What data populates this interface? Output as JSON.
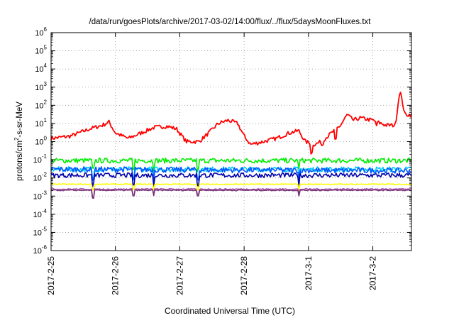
{
  "chart_data": {
    "type": "line",
    "title": "/data/run/goesPlots/archive/2017-03-02/14:00/flux/../flux/5daysMoonFluxes.txt",
    "xlabel": "Coordinated Universal Time (UTC)",
    "ylabel_main": "protons/cm",
    "ylabel_sup": "2",
    "ylabel_rest": "-s-sr-MeV",
    "yscale": "log",
    "ylim": [
      1e-06,
      1000000.0
    ],
    "y_ticks": [
      {
        "base": "10",
        "exp": "-6"
      },
      {
        "base": "10",
        "exp": "-5"
      },
      {
        "base": "10",
        "exp": "-4"
      },
      {
        "base": "10",
        "exp": "-3"
      },
      {
        "base": "10",
        "exp": "-2"
      },
      {
        "base": "10",
        "exp": "-1"
      },
      {
        "base": "10",
        "exp": "0"
      },
      {
        "base": "10",
        "exp": "1"
      },
      {
        "base": "10",
        "exp": "2"
      },
      {
        "base": "10",
        "exp": "3"
      },
      {
        "base": "10",
        "exp": "4"
      },
      {
        "base": "10",
        "exp": "5"
      },
      {
        "base": "10",
        "exp": "6"
      }
    ],
    "x_ticks": [
      "2017-2-25",
      "2017-2-26",
      "2017-2-27",
      "2017-2-28",
      "2017-3-1",
      "2017-3-2"
    ],
    "xlim_days": [
      0,
      5.6
    ],
    "grid": true,
    "legend": "none",
    "series": [
      {
        "color": "#ff0000",
        "base": [
          [
            0,
            1.5
          ],
          [
            0.3,
            2
          ],
          [
            0.6,
            5
          ],
          [
            0.8,
            8
          ],
          [
            0.9,
            12
          ],
          [
            1.0,
            3
          ],
          [
            1.2,
            1.5
          ],
          [
            1.4,
            3
          ],
          [
            1.6,
            6
          ],
          [
            1.8,
            7
          ],
          [
            1.95,
            5
          ],
          [
            2.1,
            1
          ],
          [
            2.3,
            1
          ],
          [
            2.45,
            3
          ],
          [
            2.6,
            10
          ],
          [
            2.75,
            15
          ],
          [
            2.9,
            10
          ],
          [
            3.0,
            2
          ],
          [
            3.1,
            0.7
          ],
          [
            3.3,
            1
          ],
          [
            3.5,
            1.5
          ],
          [
            3.7,
            3
          ],
          [
            3.85,
            4
          ],
          [
            3.95,
            1
          ],
          [
            4.1,
            0.7
          ],
          [
            4.2,
            1
          ],
          [
            4.3,
            2
          ],
          [
            4.5,
            8
          ],
          [
            4.6,
            30
          ],
          [
            4.7,
            15
          ],
          [
            4.8,
            20
          ],
          [
            5.0,
            15
          ],
          [
            5.2,
            8
          ],
          [
            5.35,
            8
          ],
          [
            5.42,
            700
          ],
          [
            5.5,
            30
          ],
          [
            5.6,
            30
          ]
        ],
        "noise": 0.22,
        "dips": [
          [
            4.05,
            0.3
          ],
          [
            4.22,
            0.6
          ],
          [
            4.42,
            0.25
          ],
          [
            5.06,
            0.5
          ]
        ]
      },
      {
        "color": "#00ee00",
        "base": [
          [
            0,
            0.09
          ],
          [
            5.6,
            0.09
          ]
        ],
        "noise": 0.28,
        "dips": [
          [
            0.65,
            0.3
          ],
          [
            1.28,
            0.3
          ],
          [
            1.6,
            0.3
          ],
          [
            2.28,
            0.3
          ],
          [
            3.85,
            0.3
          ]
        ]
      },
      {
        "color": "#00c8ff",
        "base": [
          [
            0,
            0.03
          ],
          [
            5.6,
            0.03
          ]
        ],
        "noise": 0.28,
        "dips": [
          [
            0.65,
            0.3
          ],
          [
            1.28,
            0.3
          ],
          [
            1.6,
            0.3
          ],
          [
            2.28,
            0.3
          ],
          [
            3.85,
            0.3
          ]
        ]
      },
      {
        "color": "#0055ff",
        "base": [
          [
            0,
            0.03
          ],
          [
            5.6,
            0.025
          ]
        ],
        "noise": 0.3,
        "dips": [
          [
            0.65,
            0.3
          ],
          [
            1.28,
            0.3
          ],
          [
            1.6,
            0.3
          ],
          [
            2.28,
            0.3
          ],
          [
            3.85,
            0.3
          ]
        ]
      },
      {
        "color": "#0000aa",
        "base": [
          [
            0,
            0.014
          ],
          [
            5.6,
            0.014
          ]
        ],
        "noise": 0.26,
        "dips": [
          [
            0.65,
            0.3
          ],
          [
            1.28,
            0.3
          ],
          [
            1.6,
            0.3
          ],
          [
            2.28,
            0.3
          ],
          [
            3.85,
            0.3
          ]
        ]
      },
      {
        "color": "#ffff00",
        "base": [
          [
            0,
            0.0045
          ],
          [
            5.6,
            0.0045
          ]
        ],
        "noise": 0.05,
        "dips": [
          [
            0.65,
            0.5
          ],
          [
            1.28,
            0.5
          ],
          [
            1.6,
            0.5
          ],
          [
            2.28,
            0.5
          ],
          [
            3.85,
            0.5
          ]
        ]
      },
      {
        "color": "#aa55aa",
        "base": [
          [
            0,
            0.0024
          ],
          [
            5.6,
            0.0024
          ]
        ],
        "noise": 0.07,
        "dips": [
          [
            0.65,
            0.35
          ],
          [
            1.28,
            0.5
          ],
          [
            1.6,
            0.5
          ],
          [
            2.28,
            0.5
          ],
          [
            3.85,
            0.5
          ]
        ]
      },
      {
        "color": "#773377",
        "base": [
          [
            0,
            0.0021
          ],
          [
            5.6,
            0.0021
          ]
        ],
        "noise": 0.06,
        "dips": [
          [
            0.65,
            0.35
          ],
          [
            1.28,
            0.5
          ],
          [
            1.6,
            0.5
          ],
          [
            2.28,
            0.5
          ],
          [
            3.85,
            0.5
          ]
        ]
      }
    ]
  }
}
